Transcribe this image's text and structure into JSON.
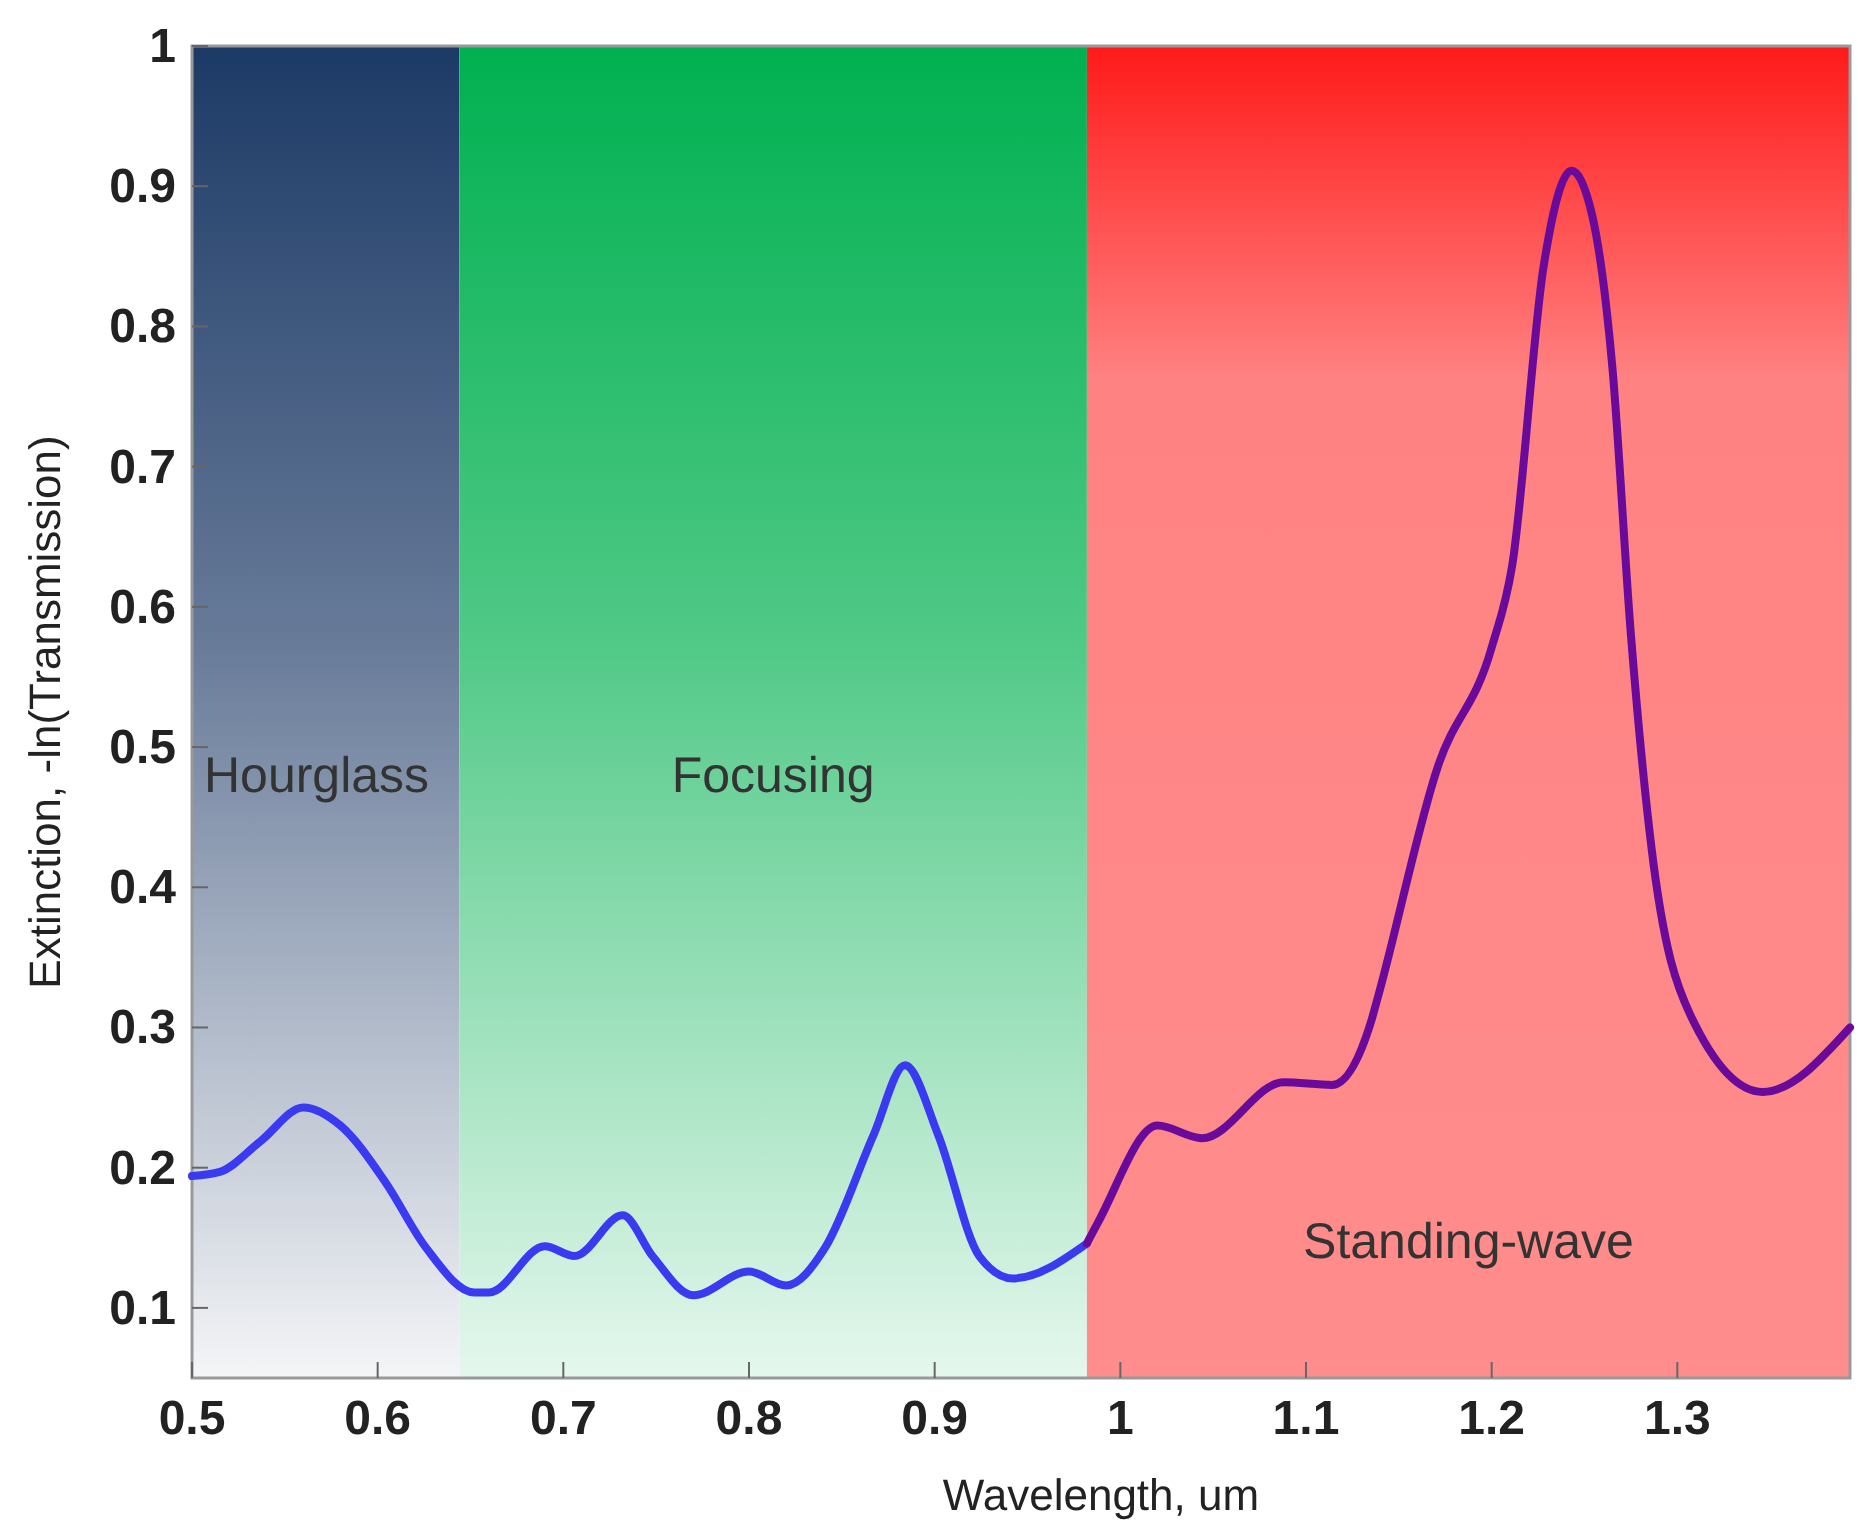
{
  "chart_data": {
    "type": "line",
    "xlabel": "Wavelength, um",
    "ylabel": "Extinction, -ln(Transmission)",
    "xlim": [
      0.5,
      1.393
    ],
    "ylim": [
      0.05,
      1
    ],
    "xticks": [
      0.5,
      0.6,
      0.7,
      0.8,
      0.9,
      1,
      1.1,
      1.2,
      1.3
    ],
    "yticks": [
      0.1,
      0.2,
      0.3,
      0.4,
      0.5,
      0.6,
      0.7,
      0.8,
      0.9,
      1
    ],
    "grid": false,
    "line_style": "solid",
    "marker": "none",
    "bands": [
      {
        "axis": "x",
        "from": 0.5,
        "to": 0.644,
        "label": "Hourglass",
        "color": "#1c3a66"
      },
      {
        "axis": "x",
        "from": 0.644,
        "to": 0.982,
        "label": "Focusing",
        "color": "#00b050"
      },
      {
        "axis": "x",
        "from": 0.982,
        "to": 1.393,
        "label": "Standing-wave",
        "color": "#ff1a1a"
      }
    ],
    "series": [
      {
        "color": "#3a3af0",
        "x": [
          0.5,
          0.515,
          0.537,
          0.56,
          0.58,
          0.604,
          0.626,
          0.652,
          0.66,
          0.69,
          0.706,
          0.732,
          0.748,
          0.77,
          0.8,
          0.82,
          0.841,
          0.867,
          0.884,
          0.902,
          0.924,
          0.942,
          0.982
        ],
        "values": [
          0.194,
          0.197,
          0.219,
          0.243,
          0.23,
          0.19,
          0.143,
          0.111,
          0.111,
          0.144,
          0.137,
          0.166,
          0.137,
          0.109,
          0.126,
          0.116,
          0.143,
          0.223,
          0.273,
          0.223,
          0.137,
          0.121,
          0.146
        ]
      },
      {
        "color": "#6a0a9a",
        "x": [
          0.982,
          0.988,
          1.02,
          1.044,
          1.088,
          1.114,
          1.135,
          1.139,
          1.171,
          1.2,
          1.211,
          1.228,
          1.243,
          1.254,
          1.265,
          1.275,
          1.286,
          1.307,
          1.346,
          1.393
        ],
        "values": [
          0.146,
          0.161,
          0.23,
          0.221,
          0.261,
          0.259,
          0.304,
          0.323,
          0.486,
          0.571,
          0.629,
          0.843,
          0.911,
          0.88,
          0.771,
          0.58,
          0.429,
          0.309,
          0.254,
          0.3
        ]
      }
    ]
  }
}
